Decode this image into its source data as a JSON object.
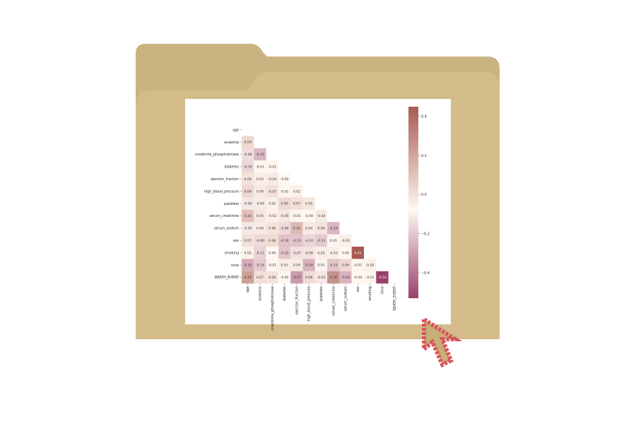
{
  "chart_data": {
    "type": "heatmap",
    "title": "",
    "variables": [
      "age",
      "anaemia",
      "creatinine_phosphokinase",
      "diabetes",
      "ejection_fraction",
      "high_blood_pressure",
      "platelets",
      "serum_creatinine",
      "serum_sodium",
      "sex",
      "smoking",
      "time",
      "DEATH_EVENT"
    ],
    "x_tick_labels": [
      "age",
      "anaemia",
      "creatinine_phosphokinase",
      "diabetes",
      "ejection_fraction",
      "high_blood_pressure",
      "platelets",
      "serum_creatinine",
      "serum_sodium",
      "sex",
      "smoking",
      "time",
      "DEATH_EVENT"
    ],
    "x_tick_labels_display": [
      "age",
      "anaemia",
      "creatinine_phosphokinase",
      "diabetes",
      "ejection_fraction",
      "high_blood_pressure",
      "platelets",
      "serum_creatinine",
      "serum_sodium",
      "sex",
      "smoking",
      "time",
      "DEATH_EVENT"
    ],
    "mask": "upper-triangle-and-diagonal",
    "rows": [
      [],
      [
        0.09
      ],
      [
        -0.08,
        -0.19
      ],
      [
        -0.1,
        -0.01,
        -0.01
      ],
      [
        0.06,
        0.03,
        -0.04,
        -0.0
      ],
      [
        0.09,
        0.04,
        -0.07,
        -0.01,
        0.02
      ],
      [
        -0.05,
        -0.04,
        0.02,
        0.09,
        0.07,
        0.05
      ],
      [
        0.16,
        0.05,
        -0.02,
        -0.05,
        -0.01,
        -0.0,
        -0.04
      ],
      [
        -0.05,
        0.04,
        0.06,
        -0.09,
        0.18,
        0.04,
        0.06,
        -0.19
      ],
      [
        0.07,
        -0.09,
        0.08,
        -0.16,
        -0.15,
        -0.1,
        -0.13,
        0.01,
        -0.03
      ],
      [
        0.02,
        -0.11,
        0.0,
        -0.15,
        -0.07,
        -0.06,
        0.03,
        -0.03,
        0.0,
        0.45
      ],
      [
        -0.22,
        -0.14,
        -0.01,
        0.03,
        0.04,
        -0.2,
        0.01,
        -0.15,
        0.09,
        -0.01,
        -0.02
      ],
      [
        0.25,
        0.07,
        0.06,
        -0.0,
        -0.27,
        0.08,
        -0.05,
        0.29,
        -0.2,
        -0.0,
        -0.01,
        -0.53
      ]
    ],
    "value_labels": [
      [],
      [
        "0.09"
      ],
      [
        "-0.08",
        "-0.19"
      ],
      [
        "-0.10",
        "-0.01",
        "-0.01"
      ],
      [
        "0.06",
        "0.03",
        "-0.04",
        "-0.00"
      ],
      [
        "0.09",
        "0.04",
        "-0.07",
        "-0.01",
        "0.02"
      ],
      [
        "-0.05",
        "-0.04",
        "0.02",
        "0.09",
        "0.07",
        "0.05"
      ],
      [
        "0.16",
        "0.05",
        "-0.02",
        "-0.05",
        "-0.01",
        "-0.00",
        "-0.04"
      ],
      [
        "-0.05",
        "0.04",
        "0.06",
        "-0.09",
        "0.18",
        "0.04",
        "0.06",
        "-0.19"
      ],
      [
        "0.07",
        "-0.09",
        "0.08",
        "-0.16",
        "-0.15",
        "-0.10",
        "-0.13",
        "0.01",
        "-0.03"
      ],
      [
        "0.02",
        "-0.11",
        "0.00",
        "-0.15",
        "-0.07",
        "-0.06",
        "0.03",
        "-0.03",
        "0.00",
        "0.45"
      ],
      [
        "-0.22",
        "-0.14",
        "-0.01",
        "0.03",
        "0.04",
        "-0.20",
        "0.01",
        "-0.15",
        "0.09",
        "-0.01",
        "-0.02"
      ],
      [
        "0.25",
        "0.07",
        "0.06",
        "-0.00",
        "-0.27",
        "0.08",
        "-0.05",
        "0.29",
        "-0.20",
        "-0.00",
        "-0.01",
        "-0.53"
      ]
    ],
    "colorbar": {
      "range": [
        -0.53,
        0.45
      ],
      "ticks": [
        0.4,
        0.2,
        0.0,
        -0.2,
        -0.4
      ],
      "tick_labels": [
        "0.4",
        "0.2",
        "0.0",
        "−0.2",
        "−0.4"
      ],
      "colors": {
        "high": "#a85a54",
        "mid": "#fff8f0",
        "low": "#97416c"
      }
    },
    "grid": false,
    "legend": "right colorbar"
  },
  "colors": {
    "folder_back": "#c9b381",
    "folder_front": "#d3bc89",
    "paper": "#ffffff",
    "cursor_fill": "#c7b077",
    "cursor_stroke": "#d9545a"
  },
  "icons": {
    "folder": "folder-icon",
    "cursor": "pixel-arrow-cursor-icon"
  }
}
